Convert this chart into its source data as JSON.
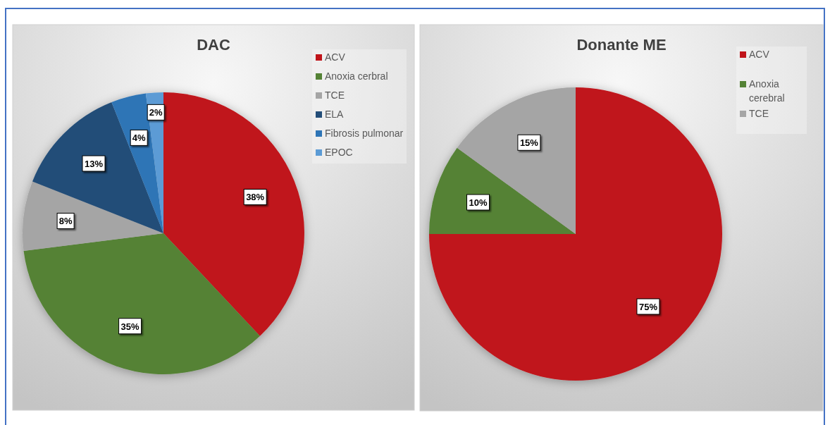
{
  "chart_data": [
    {
      "type": "pie",
      "title": "DAC",
      "categories": [
        "ACV",
        "Anoxia cerbral",
        "TCE",
        "ELA",
        "Fibrosis pulmonar",
        "EPOC"
      ],
      "values": [
        38,
        35,
        8,
        13,
        4,
        2
      ],
      "colors": [
        "#c0141a",
        "#548235",
        "#a5a5a5",
        "#234d78",
        "#2e75b6",
        "#5b9bd5"
      ],
      "value_labels": [
        "38%",
        "35%",
        "8%",
        "13%",
        "4%",
        "2%"
      ],
      "legend": "top right"
    },
    {
      "type": "pie",
      "title": "Donante ME",
      "categories": [
        "ACV",
        "Anoxia cerebral",
        "TCE"
      ],
      "values": [
        75,
        10,
        15
      ],
      "colors": [
        "#c0141a",
        "#548235",
        "#a5a5a5"
      ],
      "value_labels": [
        "75%",
        "10%",
        "15%"
      ],
      "legend": "top right"
    }
  ]
}
